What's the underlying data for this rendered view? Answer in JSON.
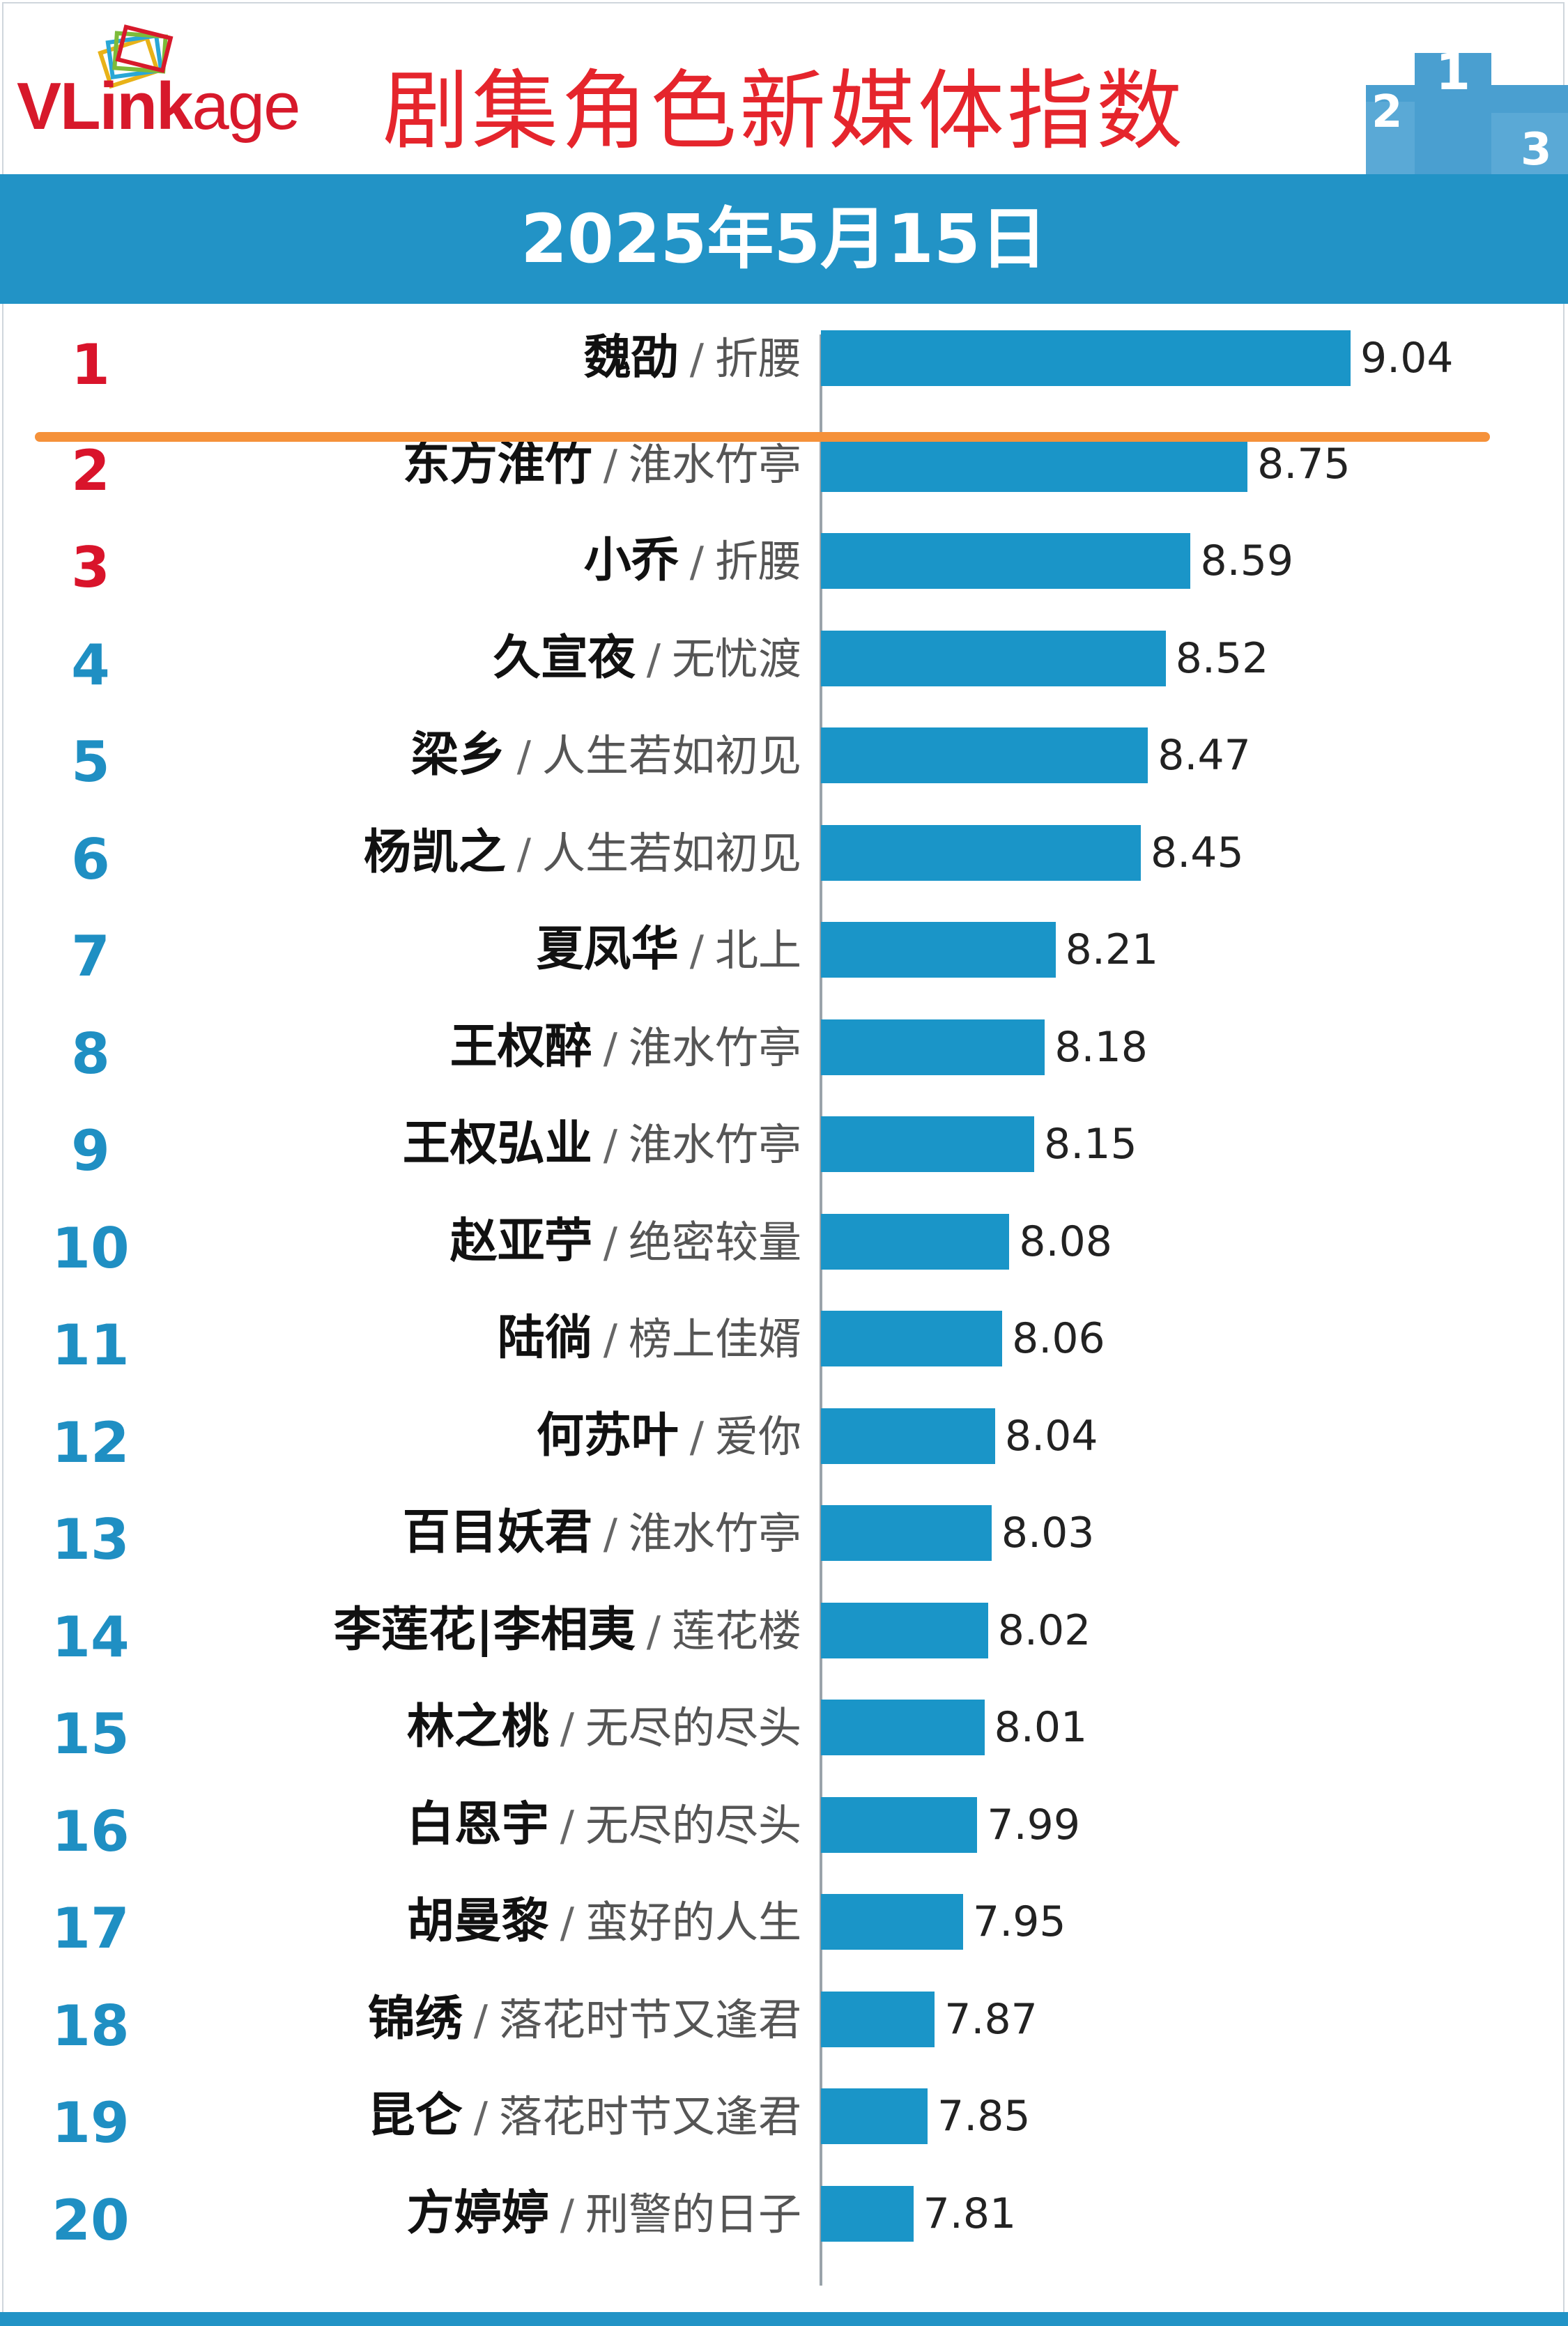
{
  "header": {
    "logo": "VLinkage",
    "logo_parts": [
      "VLink",
      "age"
    ],
    "title": "剧集角色新媒体指数",
    "date": "2025年5月15日"
  },
  "colors": {
    "title_red": "#e5252c",
    "banner_blue": "#2293c6",
    "bar_blue": "#1a95c8",
    "top_rank_red": "#d9142b",
    "rank_blue": "#1f8fc3",
    "divider_orange": "#f5913a"
  },
  "chart_data": {
    "type": "bar",
    "orientation": "horizontal",
    "title": "剧集角色新媒体指数",
    "xlim": [
      0,
      9.04
    ],
    "categories": [
      {
        "rank": "1",
        "name": "魏劭",
        "show": "折腰"
      },
      {
        "rank": "2",
        "name": "东方淮竹",
        "show": "淮水竹亭"
      },
      {
        "rank": "3",
        "name": "小乔",
        "show": "折腰"
      },
      {
        "rank": "4",
        "name": "久宣夜",
        "show": "无忧渡"
      },
      {
        "rank": "5",
        "name": "梁乡",
        "show": "人生若如初见"
      },
      {
        "rank": "6",
        "name": "杨凯之",
        "show": "人生若如初见"
      },
      {
        "rank": "7",
        "name": "夏凤华",
        "show": "北上"
      },
      {
        "rank": "8",
        "name": "王权醉",
        "show": "淮水竹亭"
      },
      {
        "rank": "9",
        "name": "王权弘业",
        "show": "淮水竹亭"
      },
      {
        "rank": "10",
        "name": "赵亚苧",
        "show": "绝密较量"
      },
      {
        "rank": "11",
        "name": "陆徜",
        "show": "榜上佳婿"
      },
      {
        "rank": "12",
        "name": "何苏叶",
        "show": "爱你"
      },
      {
        "rank": "13",
        "name": "百目妖君",
        "show": "淮水竹亭"
      },
      {
        "rank": "14",
        "name": "李莲花|李相夷",
        "show": "莲花楼"
      },
      {
        "rank": "15",
        "name": "林之桃",
        "show": "无尽的尽头"
      },
      {
        "rank": "16",
        "name": "白恩宇",
        "show": "无尽的尽头"
      },
      {
        "rank": "17",
        "name": "胡曼黎",
        "show": "蛮好的人生"
      },
      {
        "rank": "18",
        "name": "锦绣",
        "show": "落花时节又逢君"
      },
      {
        "rank": "19",
        "name": "昆仑",
        "show": "落花时节又逢君"
      },
      {
        "rank": "20",
        "name": "方婷婷",
        "show": "刑警的日子"
      }
    ],
    "values": [
      "9.04",
      "8.75",
      "8.59",
      "8.52",
      "8.47",
      "8.45",
      "8.21",
      "8.18",
      "8.15",
      "8.08",
      "8.06",
      "8.04",
      "8.03",
      "8.02",
      "8.01",
      "7.99",
      "7.95",
      "7.87",
      "7.85",
      "7.81"
    ],
    "separator": "/"
  }
}
